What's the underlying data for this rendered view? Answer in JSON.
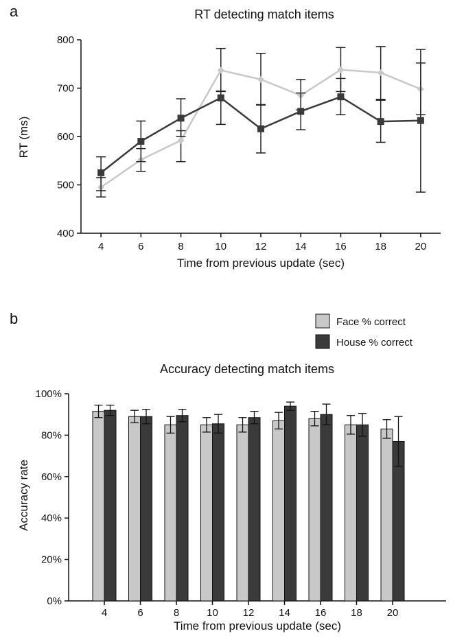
{
  "colors": {
    "face": "#c8c8c8",
    "house": "#3a3a3a",
    "axis": "#111111"
  },
  "panels": {
    "a": {
      "letter": "a"
    },
    "b": {
      "letter": "b"
    }
  },
  "legend": {
    "face": "Face % correct",
    "house": "House % correct"
  },
  "chart_data": [
    {
      "type": "line",
      "title": "RT detecting match items",
      "xlabel": "Time from previous update (sec)",
      "ylabel": "RT (ms)",
      "x": [
        4,
        6,
        8,
        10,
        12,
        14,
        16,
        18,
        20
      ],
      "xlim": [
        3,
        21
      ],
      "ylim": [
        400,
        800
      ],
      "yticks": [
        400,
        500,
        600,
        700,
        800
      ],
      "ytick_labels": [
        "400",
        "500",
        "600",
        "700",
        "800"
      ],
      "xtick_labels": [
        "4",
        "6",
        "8",
        "10",
        "12",
        "14",
        "16",
        "18",
        "20"
      ],
      "series": [
        {
          "name": "Face",
          "color": "#c8c8c8",
          "marker": "diamond",
          "values": [
            495,
            552,
            592,
            737,
            718,
            685,
            738,
            732,
            698
          ],
          "err_upper": [
            515,
            575,
            612,
            782,
            772,
            718,
            784,
            786,
            780
          ],
          "err_lower": [
            475,
            528,
            548,
            693,
            665,
            655,
            693,
            677,
            645
          ]
        },
        {
          "name": "House",
          "color": "#3a3a3a",
          "marker": "square",
          "values": [
            525,
            590,
            638,
            680,
            616,
            652,
            682,
            631,
            633
          ],
          "err_upper": [
            558,
            632,
            678,
            694,
            666,
            690,
            720,
            675,
            752
          ],
          "err_lower": [
            488,
            548,
            600,
            625,
            566,
            614,
            645,
            588,
            485
          ]
        }
      ]
    },
    {
      "type": "bar",
      "title": "Accuracy detecting match items",
      "xlabel": "Time from previous update (sec)",
      "ylabel": "Accuracy rate",
      "categories": [
        "4",
        "6",
        "8",
        "10",
        "12",
        "14",
        "16",
        "18",
        "20"
      ],
      "ylim": [
        0,
        100
      ],
      "yticks": [
        0,
        20,
        40,
        60,
        80,
        100
      ],
      "ytick_labels": [
        "0%",
        "20%",
        "40%",
        "60%",
        "80%",
        "100%"
      ],
      "legend_position": "top-right",
      "series": [
        {
          "name": "Face % correct",
          "color": "#c8c8c8",
          "values": [
            91.5,
            89,
            85,
            85,
            85,
            87,
            88,
            85,
            83
          ],
          "err": [
            3,
            3,
            4,
            3.5,
            3.5,
            4,
            3.5,
            4.5,
            4.5
          ]
        },
        {
          "name": "House % correct",
          "color": "#3a3a3a",
          "values": [
            92,
            89,
            89.5,
            85.5,
            88.5,
            94,
            90,
            85,
            77
          ],
          "err": [
            2.5,
            3.5,
            3,
            4.5,
            3,
            2,
            5,
            5.5,
            12
          ]
        }
      ]
    }
  ]
}
